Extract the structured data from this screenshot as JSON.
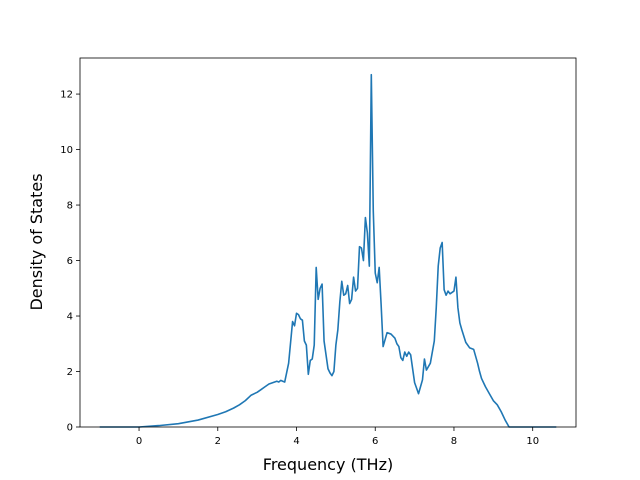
{
  "chart_data": {
    "type": "line",
    "title": "",
    "xlabel": "Frequency (THz)",
    "ylabel": "Density of States",
    "xlim": [
      -1.5,
      11.1
    ],
    "ylim": [
      0,
      13.3
    ],
    "xticks": [
      0,
      2,
      4,
      6,
      8,
      10
    ],
    "yticks": [
      0,
      2,
      4,
      6,
      8,
      10,
      12
    ],
    "grid": false,
    "line_color": "#1f77b4",
    "series": [
      {
        "x": [
          -1.0,
          -0.5,
          0.0,
          0.5,
          1.0,
          1.5,
          2.0,
          2.2,
          2.4,
          2.55,
          2.7,
          2.85,
          3.0,
          3.1,
          3.2,
          3.3,
          3.4,
          3.5,
          3.55,
          3.6,
          3.65,
          3.7,
          3.8,
          3.9,
          3.95,
          4.0,
          4.05,
          4.1,
          4.15,
          4.2,
          4.25,
          4.3,
          4.35,
          4.4,
          4.45,
          4.5,
          4.55,
          4.6,
          4.65,
          4.7,
          4.8,
          4.85,
          4.9,
          4.95,
          5.0,
          5.05,
          5.1,
          5.15,
          5.2,
          5.25,
          5.3,
          5.35,
          5.4,
          5.45,
          5.5,
          5.55,
          5.6,
          5.65,
          5.7,
          5.75,
          5.8,
          5.85,
          5.9,
          5.95,
          6.0,
          6.05,
          6.1,
          6.15,
          6.2,
          6.3,
          6.4,
          6.5,
          6.55,
          6.6,
          6.65,
          6.7,
          6.75,
          6.8,
          6.85,
          6.9,
          6.95,
          7.0,
          7.05,
          7.1,
          7.15,
          7.2,
          7.25,
          7.3,
          7.4,
          7.5,
          7.55,
          7.6,
          7.65,
          7.7,
          7.75,
          7.8,
          7.85,
          7.9,
          7.95,
          8.0,
          8.05,
          8.1,
          8.15,
          8.2,
          8.3,
          8.4,
          8.5,
          8.6,
          8.65,
          8.7,
          8.8,
          8.9,
          9.0,
          9.1,
          9.2,
          9.3,
          9.4,
          9.5,
          9.6,
          9.65,
          9.7,
          10.0,
          10.3,
          10.6
        ],
        "y": [
          0.0,
          0.0,
          0.0,
          0.05,
          0.12,
          0.25,
          0.45,
          0.55,
          0.68,
          0.8,
          0.95,
          1.15,
          1.25,
          1.35,
          1.45,
          1.55,
          1.6,
          1.65,
          1.62,
          1.68,
          1.65,
          1.62,
          2.3,
          3.8,
          3.65,
          4.1,
          4.05,
          3.9,
          3.85,
          3.1,
          2.95,
          1.9,
          2.4,
          2.45,
          2.95,
          5.75,
          4.6,
          5.0,
          5.15,
          3.1,
          2.1,
          1.95,
          1.85,
          2.0,
          2.95,
          3.5,
          4.5,
          5.25,
          4.75,
          4.8,
          5.1,
          4.45,
          4.6,
          5.4,
          4.9,
          5.0,
          6.5,
          6.45,
          6.0,
          7.55,
          7.0,
          5.8,
          12.7,
          7.8,
          5.55,
          5.2,
          5.75,
          4.4,
          2.9,
          3.4,
          3.35,
          3.2,
          3.0,
          2.9,
          2.5,
          2.4,
          2.7,
          2.55,
          2.7,
          2.6,
          2.1,
          1.6,
          1.4,
          1.2,
          1.45,
          1.7,
          2.45,
          2.05,
          2.3,
          3.1,
          4.3,
          5.8,
          6.45,
          6.65,
          4.95,
          4.75,
          4.9,
          4.8,
          4.85,
          4.9,
          5.4,
          4.3,
          3.75,
          3.5,
          3.05,
          2.85,
          2.8,
          2.3,
          2.0,
          1.75,
          1.45,
          1.2,
          0.95,
          0.8,
          0.55,
          0.25,
          0.0,
          0.0,
          0.0,
          0.0,
          0.0,
          0.0,
          0.0,
          0.0
        ]
      }
    ]
  }
}
